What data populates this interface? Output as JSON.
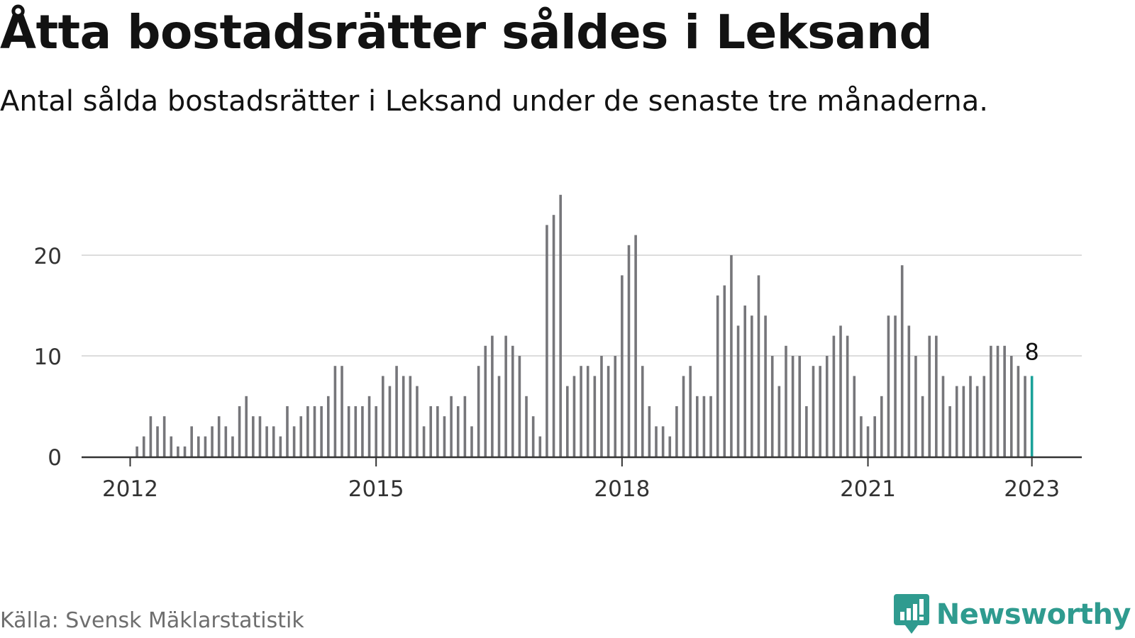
{
  "header": {
    "title": "Åtta bostadsrätter såldes i Leksand",
    "subtitle": "Antal sålda bostadsrätter i Leksand under de senaste tre månaderna."
  },
  "footer": {
    "source": "Källa: Svensk Mäklarstatistik",
    "brand": "Newsworthy",
    "brand_icon": "newsworthy-logo-icon"
  },
  "colors": {
    "bar": "#76767a",
    "highlight": "#1aa199",
    "grid": "#dcdcdc",
    "axis": "#333333",
    "brand": "#2f9b8f"
  },
  "chart_data": {
    "type": "bar",
    "title": "Åtta bostadsrätter såldes i Leksand",
    "subtitle": "Antal sålda bostadsrätter i Leksand under de senaste tre månaderna.",
    "x_start": "2012-01",
    "x_end": "2023-01",
    "interval": "month",
    "x_ticks": [
      "2012",
      "2015",
      "2018",
      "2021",
      "2023"
    ],
    "y_ticks": [
      0,
      10,
      20
    ],
    "ylim": [
      0,
      26
    ],
    "grid": true,
    "values": [
      0,
      1,
      2,
      4,
      3,
      4,
      2,
      1,
      1,
      3,
      2,
      2,
      3,
      4,
      3,
      2,
      5,
      6,
      4,
      4,
      3,
      3,
      2,
      5,
      3,
      4,
      5,
      5,
      5,
      6,
      9,
      9,
      5,
      5,
      5,
      6,
      5,
      8,
      7,
      9,
      8,
      8,
      7,
      3,
      5,
      5,
      4,
      6,
      5,
      6,
      3,
      9,
      11,
      12,
      8,
      12,
      11,
      10,
      6,
      4,
      2,
      23,
      24,
      26,
      7,
      8,
      9,
      9,
      8,
      10,
      9,
      10,
      18,
      21,
      22,
      9,
      5,
      3,
      3,
      2,
      5,
      8,
      9,
      6,
      6,
      6,
      16,
      17,
      20,
      13,
      15,
      14,
      18,
      14,
      10,
      7,
      11,
      10,
      10,
      5,
      9,
      9,
      10,
      12,
      13,
      12,
      8,
      4,
      3,
      4,
      6,
      14,
      14,
      19,
      13,
      10,
      6,
      12,
      12,
      8,
      5,
      7,
      7,
      8,
      7,
      8,
      11,
      11,
      11,
      10,
      9,
      8,
      8
    ],
    "highlight": {
      "x": "2023-01",
      "value": 8,
      "label": "8"
    }
  }
}
